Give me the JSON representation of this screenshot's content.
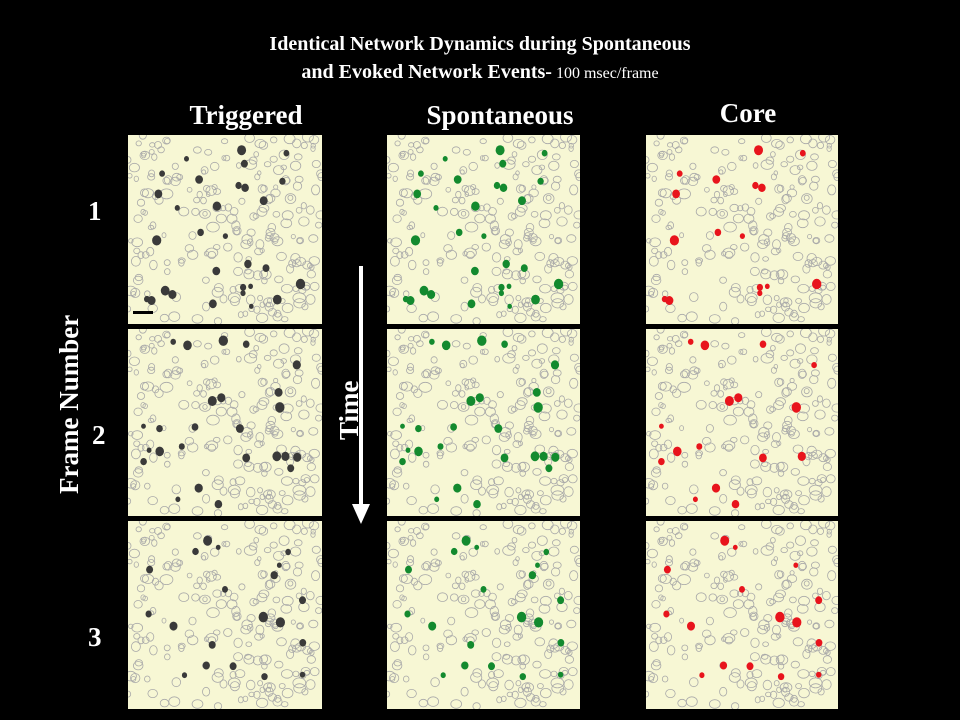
{
  "title": {
    "line1": "Identical Network Dynamics during Spontaneous",
    "line2": "and Evoked Network Events-",
    "unit": " 100 msec/frame"
  },
  "columns": [
    {
      "label": "Triggered",
      "color": "#3a3a3a"
    },
    {
      "label": "Spontaneous",
      "color": "#138a2e"
    },
    {
      "label": "Core",
      "color": "#e8141c"
    }
  ],
  "frames": [
    "1",
    "2",
    "3"
  ],
  "axis_label": "Frame Number",
  "time_label": "Time",
  "colors": {
    "background": "#000000",
    "panel": "#f7f7d4",
    "cell_outline": "#a9a9a9",
    "text": "#ffffff"
  }
}
